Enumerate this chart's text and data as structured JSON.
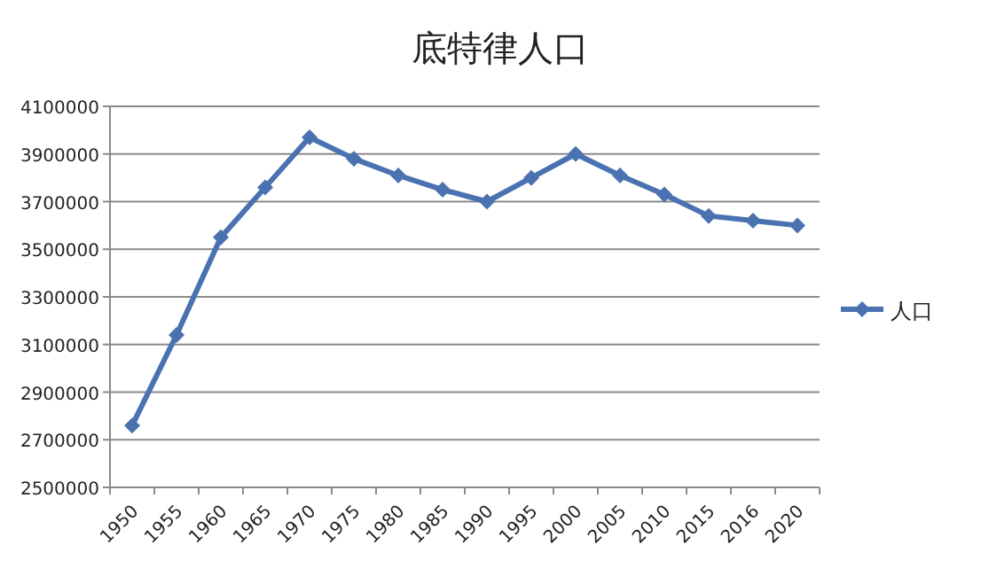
{
  "chart_data": {
    "type": "line",
    "title": "底特律人口",
    "categories": [
      "1950",
      "1955",
      "1960",
      "1965",
      "1970",
      "1975",
      "1980",
      "1985",
      "1990",
      "1995",
      "2000",
      "2005",
      "2010",
      "2015",
      "2016",
      "2020"
    ],
    "series": [
      {
        "name": "人口",
        "color": "#4a72b0",
        "values": [
          2760000,
          3140000,
          3550000,
          3760000,
          3970000,
          3880000,
          3810000,
          3750000,
          3700000,
          3800000,
          3900000,
          3810000,
          3730000,
          3640000,
          3620000,
          3600000
        ]
      }
    ],
    "ylim": [
      2500000,
      4100000
    ],
    "yticks": [
      2500000,
      2700000,
      2900000,
      3100000,
      3300000,
      3500000,
      3700000,
      3900000,
      4100000
    ],
    "grid": "y",
    "legend": "right",
    "marker": "diamond",
    "line_style": "solid"
  }
}
